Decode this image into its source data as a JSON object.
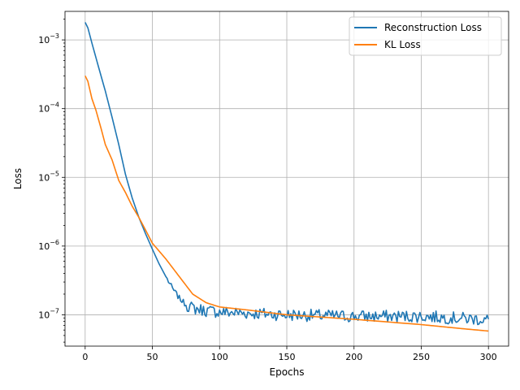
{
  "chart_data": {
    "type": "line",
    "title": "",
    "xlabel": "Epochs",
    "ylabel": "Loss",
    "yscale": "log",
    "xlim": [
      -15,
      315
    ],
    "ylim": [
      3.5e-08,
      0.0026
    ],
    "grid": true,
    "legend_position": "top-right",
    "x_ticks": [
      0,
      50,
      100,
      150,
      200,
      250,
      300
    ],
    "x_tick_labels": [
      "0",
      "50",
      "100",
      "150",
      "200",
      "250",
      "300"
    ],
    "y_ticks": [
      1e-07,
      1e-06,
      1e-05,
      0.0001,
      0.001
    ],
    "y_tick_labels": [
      {
        "base": "10",
        "exp": "−7"
      },
      {
        "base": "10",
        "exp": "−6"
      },
      {
        "base": "10",
        "exp": "−5"
      },
      {
        "base": "10",
        "exp": "−4"
      },
      {
        "base": "10",
        "exp": "−3"
      }
    ],
    "series": [
      {
        "name": "Reconstruction Loss",
        "color": "#1f77b4",
        "noise": true,
        "points": [
          [
            0,
            0.0018
          ],
          [
            2,
            0.0015
          ],
          [
            5,
            0.0009
          ],
          [
            10,
            0.0004
          ],
          [
            15,
            0.00018
          ],
          [
            20,
            7.5e-05
          ],
          [
            25,
            3e-05
          ],
          [
            30,
            1.1e-05
          ],
          [
            35,
            5e-06
          ],
          [
            40,
            2.6e-06
          ],
          [
            45,
            1.5e-06
          ],
          [
            50,
            9e-07
          ],
          [
            55,
            5.5e-07
          ],
          [
            60,
            3.6e-07
          ],
          [
            65,
            2.4e-07
          ],
          [
            70,
            1.75e-07
          ],
          [
            75,
            1.4e-07
          ],
          [
            80,
            1.25e-07
          ],
          [
            90,
            1.15e-07
          ],
          [
            100,
            1.1e-07
          ],
          [
            150,
            1e-07
          ],
          [
            200,
            9.5e-08
          ],
          [
            250,
            9.5e-08
          ],
          [
            300,
            8.5e-08
          ]
        ]
      },
      {
        "name": "KL Loss",
        "color": "#ff7f0e",
        "noise": false,
        "points": [
          [
            0,
            0.0003
          ],
          [
            2,
            0.00025
          ],
          [
            5,
            0.00014
          ],
          [
            8,
            9.5e-05
          ],
          [
            12,
            5e-05
          ],
          [
            15,
            3e-05
          ],
          [
            20,
            1.8e-05
          ],
          [
            25,
            9e-06
          ],
          [
            30,
            6e-06
          ],
          [
            35,
            3.8e-06
          ],
          [
            40,
            2.6e-06
          ],
          [
            45,
            1.7e-06
          ],
          [
            50,
            1.1e-06
          ],
          [
            60,
            6.5e-07
          ],
          [
            70,
            3.6e-07
          ],
          [
            80,
            2e-07
          ],
          [
            90,
            1.5e-07
          ],
          [
            100,
            1.3e-07
          ],
          [
            120,
            1.18e-07
          ],
          [
            150,
            1e-07
          ],
          [
            200,
            8.6e-08
          ],
          [
            250,
            7.2e-08
          ],
          [
            280,
            6.3e-08
          ],
          [
            300,
            5.8e-08
          ]
        ]
      }
    ]
  }
}
